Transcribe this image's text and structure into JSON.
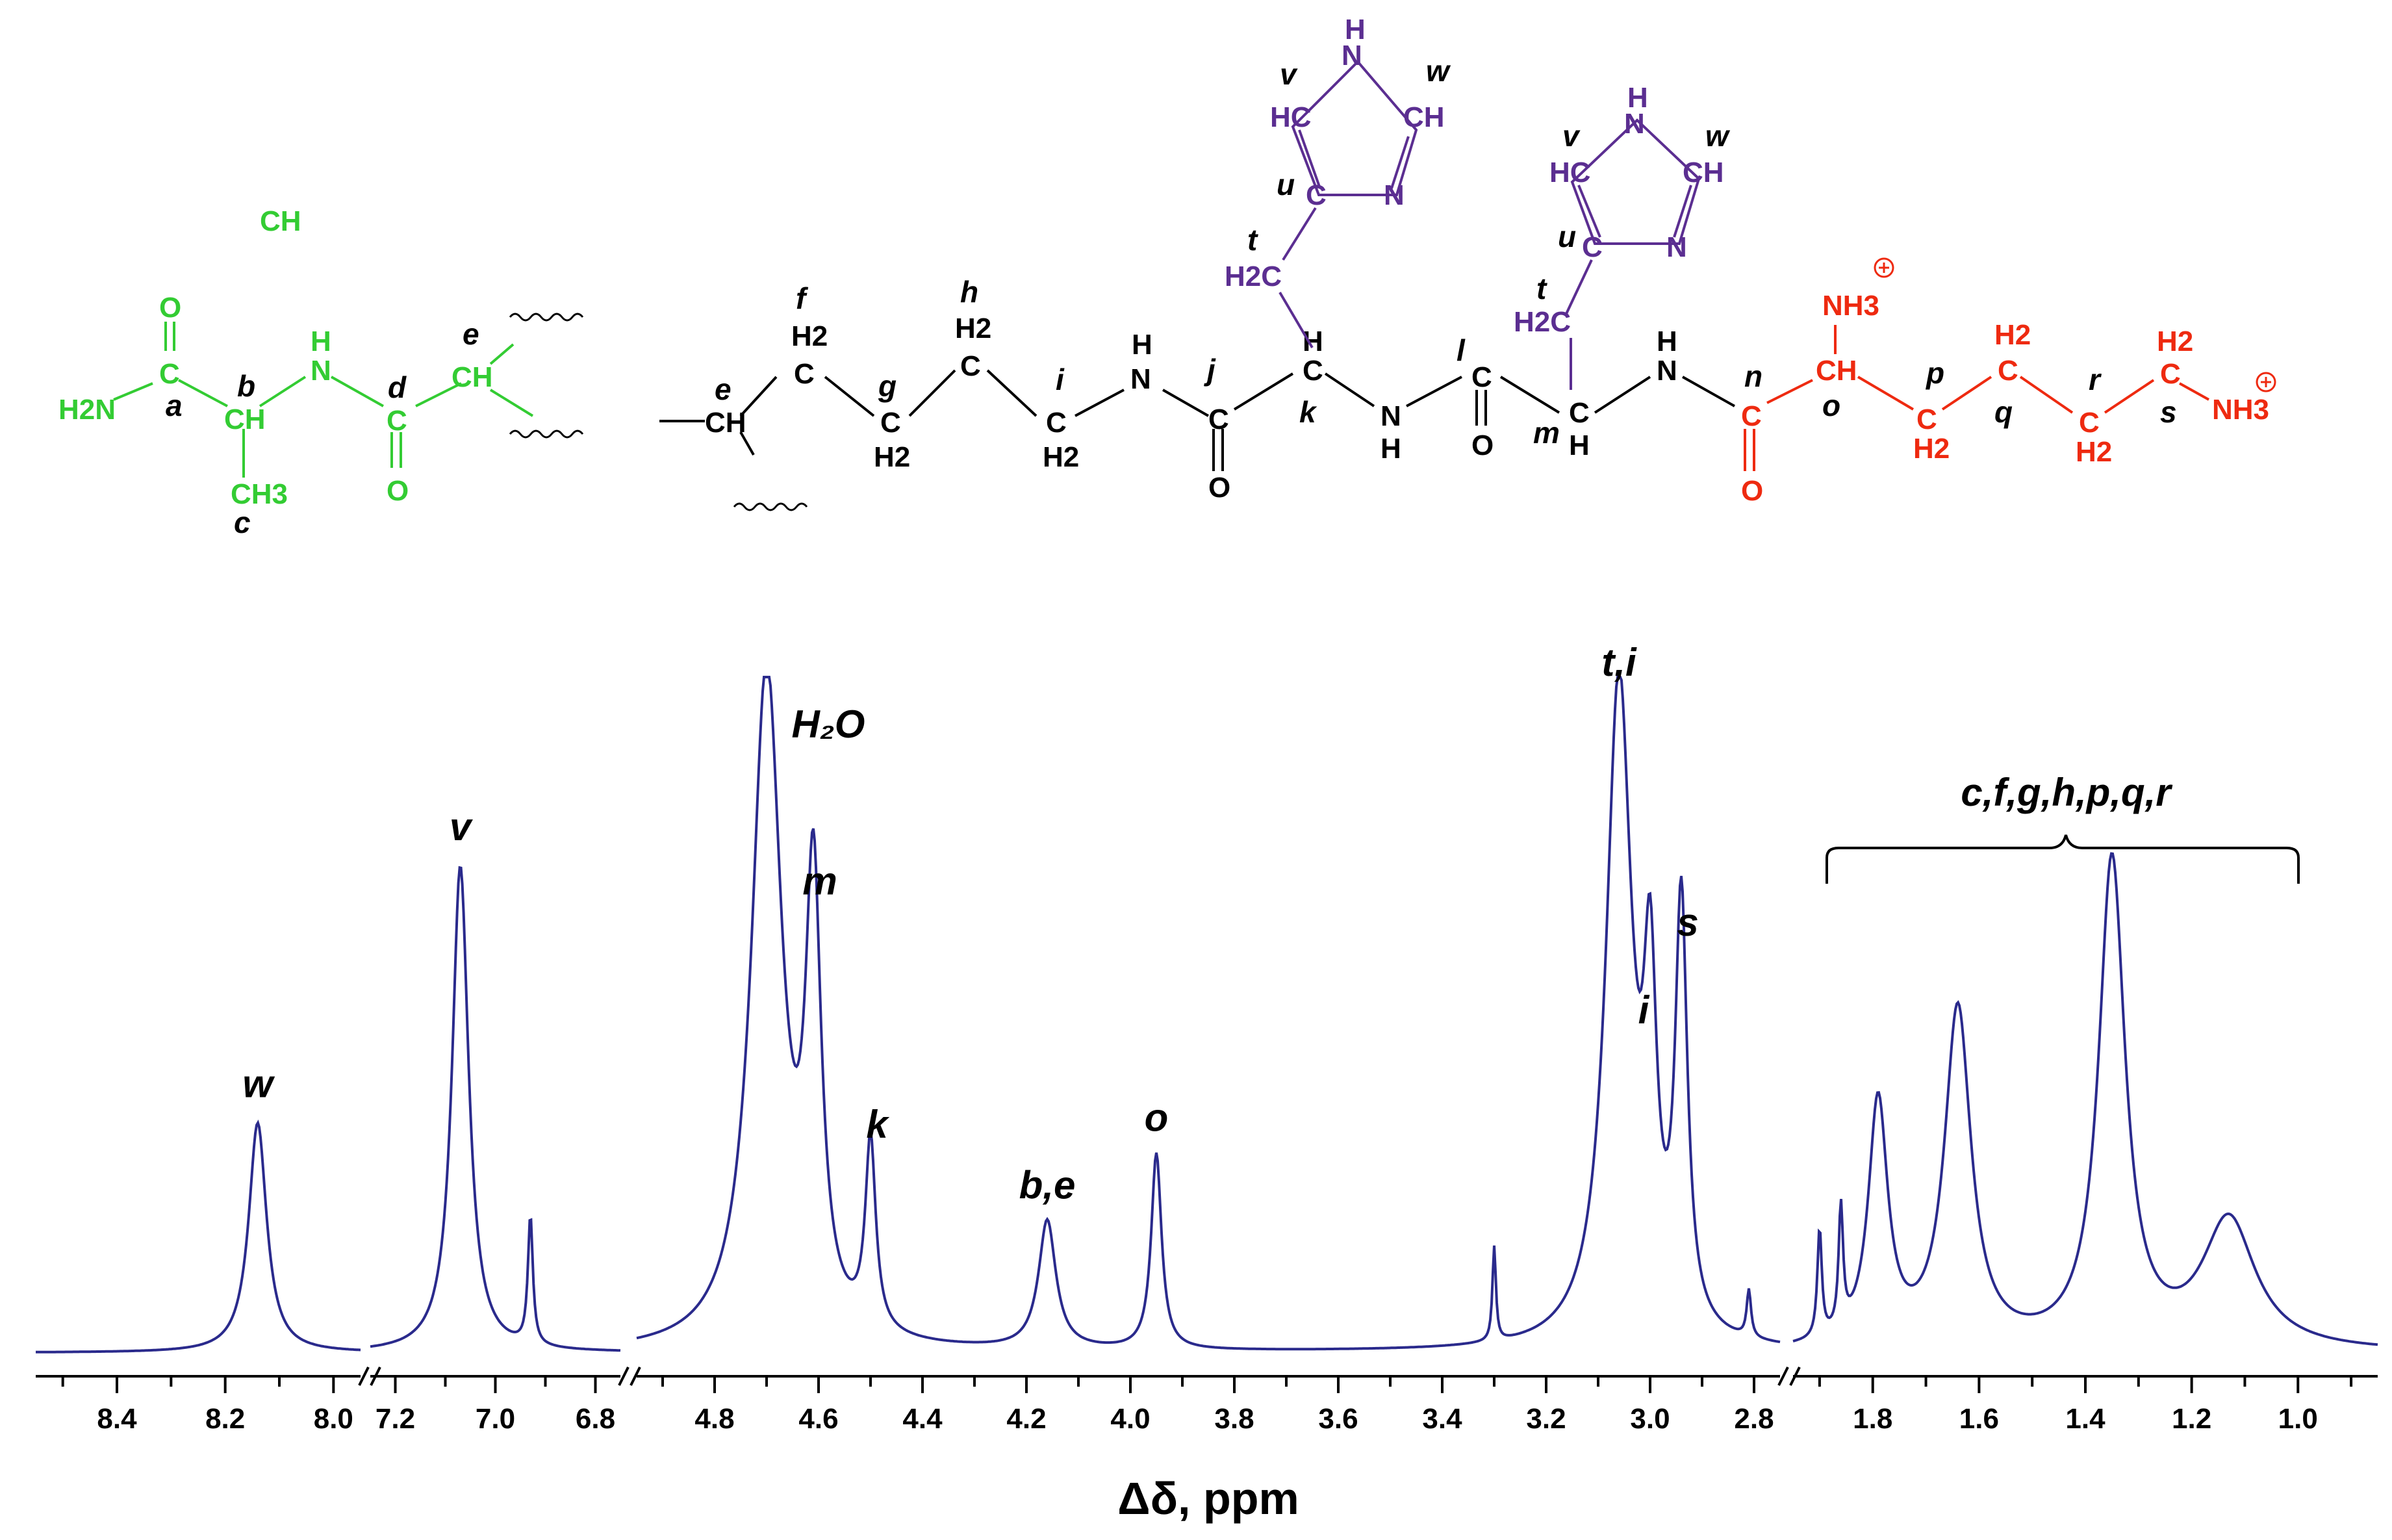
{
  "colors": {
    "spectrum": "#2a2a8c",
    "green": "#33cc33",
    "black": "#000000",
    "purple": "#5b2e91",
    "red": "#ee2a10"
  },
  "structure": {
    "green_atoms": [
      "O",
      "C",
      "H2N",
      "a",
      "b",
      "CH",
      "H",
      "N",
      "d",
      "C",
      "O",
      "e",
      "CH",
      "CH3",
      "c"
    ],
    "black_atoms": [
      "e",
      "CH",
      "f",
      "H2",
      "C",
      "g",
      "C",
      "H2",
      "h",
      "H2",
      "C",
      "i",
      "C",
      "H2",
      "H",
      "N",
      "j",
      "C",
      "O",
      "H",
      "C",
      "k",
      "N",
      "H",
      "l",
      "C",
      "O",
      "m",
      "C",
      "H",
      "H",
      "N"
    ],
    "purple_atoms": [
      "v",
      "H",
      "N",
      "w",
      "HC",
      "CH",
      "u",
      "C",
      "N",
      "t",
      "H2C",
      "v",
      "H",
      "N",
      "w",
      "HC",
      "CH",
      "u",
      "C",
      "N",
      "t",
      "H2C"
    ],
    "red_atoms": [
      "NH3",
      "n",
      "C",
      "O",
      "CH",
      "o",
      "p",
      "C",
      "H2",
      "H2",
      "C",
      "q",
      "r",
      "C",
      "H2",
      "H2",
      "C",
      "s",
      "NH3"
    ]
  },
  "chart_data": {
    "type": "line",
    "title": "",
    "xlabel": "Δδ, ppm",
    "ylabel": "",
    "x_reversed": true,
    "axis_breaks": [
      [
        7.95,
        7.25
      ],
      [
        6.75,
        4.95
      ],
      [
        2.75,
        1.95
      ]
    ],
    "segments": [
      {
        "x_range": [
          8.55,
          7.95
        ],
        "ticks": [
          "8.4",
          "8.2",
          "8.0"
        ]
      },
      {
        "x_range": [
          7.25,
          6.75
        ],
        "ticks": [
          "7.2",
          "7.0",
          "6.8"
        ]
      },
      {
        "x_range": [
          4.95,
          2.75
        ],
        "ticks": [
          "4.8",
          "4.6",
          "4.4",
          "4.2",
          "4.0",
          "3.8",
          "3.6",
          "3.4",
          "3.2",
          "3.0",
          "2.8"
        ]
      },
      {
        "x_range": [
          1.95,
          0.85
        ],
        "ticks": [
          "1.8",
          "1.6",
          "1.4",
          "1.2",
          "1.0"
        ]
      }
    ],
    "peaks": [
      {
        "label": "w",
        "ppm": 8.14,
        "relative_height": 0.34
      },
      {
        "label": "v",
        "ppm": 7.07,
        "relative_height": 0.72
      },
      {
        "label": "",
        "ppm": 6.93,
        "relative_height": 0.19
      },
      {
        "label": "H₂O",
        "ppm": 4.7,
        "relative_height": 1.0
      },
      {
        "label": "m",
        "ppm": 4.61,
        "relative_height": 0.64
      },
      {
        "label": "k",
        "ppm": 4.5,
        "relative_height": 0.28
      },
      {
        "label": "b,e",
        "ppm": 4.16,
        "relative_height": 0.19
      },
      {
        "label": "o",
        "ppm": 3.95,
        "relative_height": 0.29
      },
      {
        "label": "",
        "ppm": 3.3,
        "relative_height": 0.14
      },
      {
        "label": "t,i",
        "ppm": 3.06,
        "relative_height": 0.98
      },
      {
        "label": "i",
        "ppm": 3.0,
        "relative_height": 0.45
      },
      {
        "label": "s",
        "ppm": 2.94,
        "relative_height": 0.62
      },
      {
        "label": "",
        "ppm": 2.81,
        "relative_height": 0.07
      },
      {
        "label": "",
        "ppm": 1.9,
        "relative_height": 0.16
      },
      {
        "label": "",
        "ppm": 1.86,
        "relative_height": 0.18
      },
      {
        "label": "",
        "ppm": 1.79,
        "relative_height": 0.36
      },
      {
        "label": "",
        "ppm": 1.64,
        "relative_height": 0.5
      },
      {
        "label": "c,f,g,h,p,q,r",
        "ppm": 1.35,
        "relative_height": 0.72
      },
      {
        "label": "",
        "ppm": 1.13,
        "relative_height": 0.19
      }
    ]
  }
}
